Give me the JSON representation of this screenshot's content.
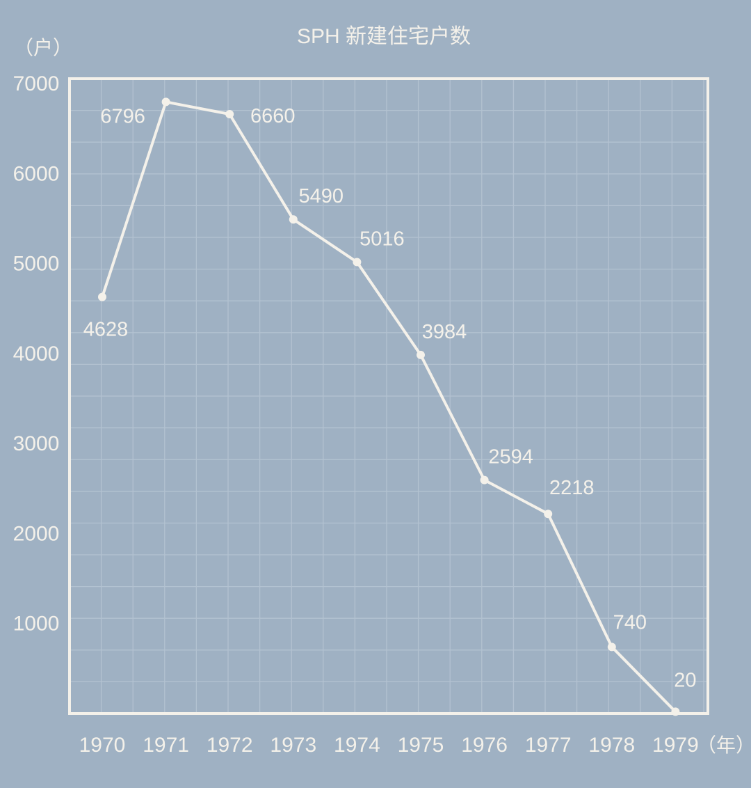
{
  "chart_data": {
    "type": "line",
    "title": "SPH 新建住宅户数",
    "ylabel": "（户）",
    "xlabel": "（年）",
    "x": [
      "1970",
      "1971",
      "1972",
      "1973",
      "1974",
      "1975",
      "1976",
      "1977",
      "1978",
      "1979"
    ],
    "values": [
      4628,
      6796,
      6660,
      5490,
      5016,
      3984,
      2594,
      2218,
      740,
      20
    ],
    "data_labels": [
      "4628",
      "6796",
      "6660",
      "5490",
      "5016",
      "3984",
      "2594",
      "2218",
      "740",
      "20"
    ],
    "yticks": [
      1000,
      2000,
      3000,
      4000,
      5000,
      6000,
      7000
    ],
    "ytick_labels": [
      "1000",
      "2000",
      "3000",
      "4000",
      "5000",
      "6000",
      "7000"
    ],
    "ylim": [
      0,
      7000
    ],
    "grid": true,
    "colors": {
      "background": "#9fb1c3",
      "line": "#f4f1ea",
      "grid": "#b3c2d1"
    }
  }
}
